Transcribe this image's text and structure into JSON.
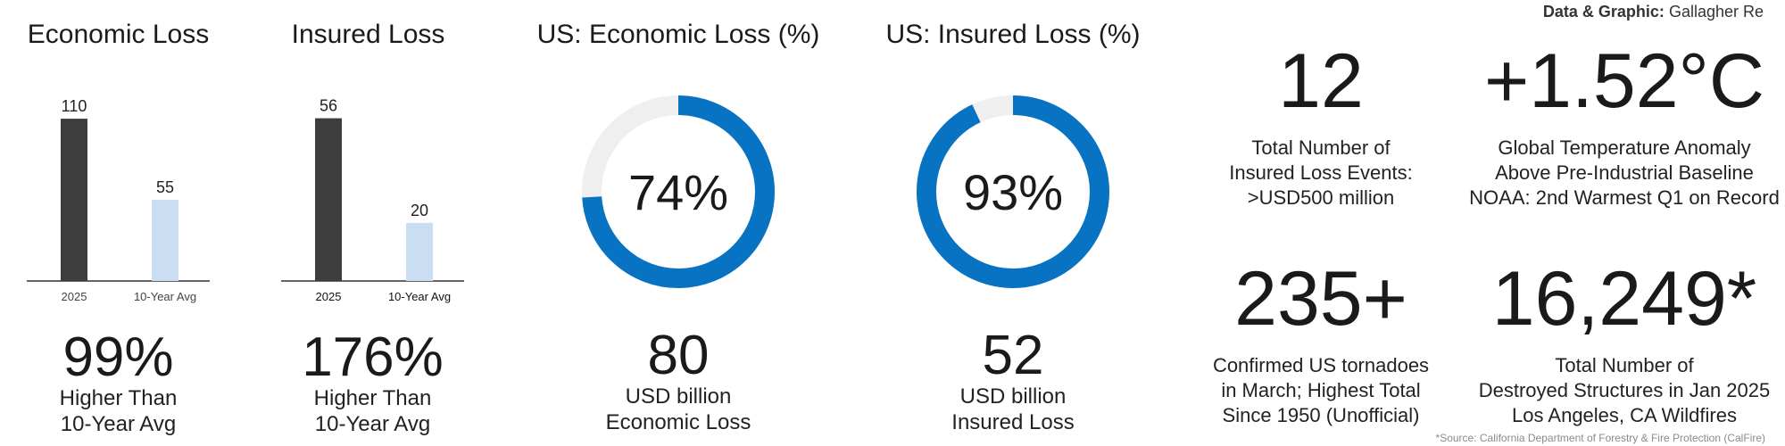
{
  "credit": {
    "label": "Data & Graphic:",
    "value": "Gallagher Re"
  },
  "source_note": "*Source: California Department of Forestry & Fire Protection (CalFire)",
  "colors": {
    "dark_bar": "#3d3d3d",
    "light_bar": "#c9def3",
    "ring_blue": "#0873c2",
    "ring_track": "#efefef"
  },
  "chart_data": [
    {
      "type": "bar",
      "title": "Economic Loss",
      "categories": [
        "2025",
        "10-Year Avg"
      ],
      "values": [
        110,
        55
      ],
      "ylim": [
        0,
        130
      ],
      "summary": {
        "value": "99%",
        "line1": "Higher Than",
        "line2": "10-Year Avg"
      }
    },
    {
      "type": "bar",
      "title": "Insured Loss",
      "categories": [
        "2025",
        "10-Year Avg"
      ],
      "values": [
        56,
        20
      ],
      "ylim": [
        0,
        66
      ],
      "summary": {
        "value": "176%",
        "line1": "Higher Than",
        "line2": "10-Year Avg"
      }
    },
    {
      "type": "pie",
      "title": "US: Economic Loss (%)",
      "percent": 74,
      "center_label": "74%",
      "summary": {
        "value": "80",
        "line1": "USD billion",
        "line2": "Economic Loss"
      }
    },
    {
      "type": "pie",
      "title": "US: Insured Loss (%)",
      "percent": 93,
      "center_label": "93%",
      "summary": {
        "value": "52",
        "line1": "USD billion",
        "line2": "Insured Loss"
      }
    }
  ],
  "stats": [
    {
      "value": "12",
      "lines": [
        "Total Number of",
        "Insured Loss Events:",
        ">USD500 million"
      ]
    },
    {
      "value": "+1.52°C",
      "lines": [
        "Global Temperature Anomaly",
        "Above Pre-Industrial Baseline",
        "NOAA: 2nd Warmest Q1 on Record"
      ]
    },
    {
      "value": "235+",
      "lines": [
        "Confirmed US tornadoes",
        "in March; Highest Total",
        "Since 1950 (Unofficial)"
      ]
    },
    {
      "value": "16,249*",
      "lines": [
        "Total Number of",
        "Destroyed Structures in Jan 2025",
        "Los Angeles, CA Wildfires"
      ]
    }
  ]
}
